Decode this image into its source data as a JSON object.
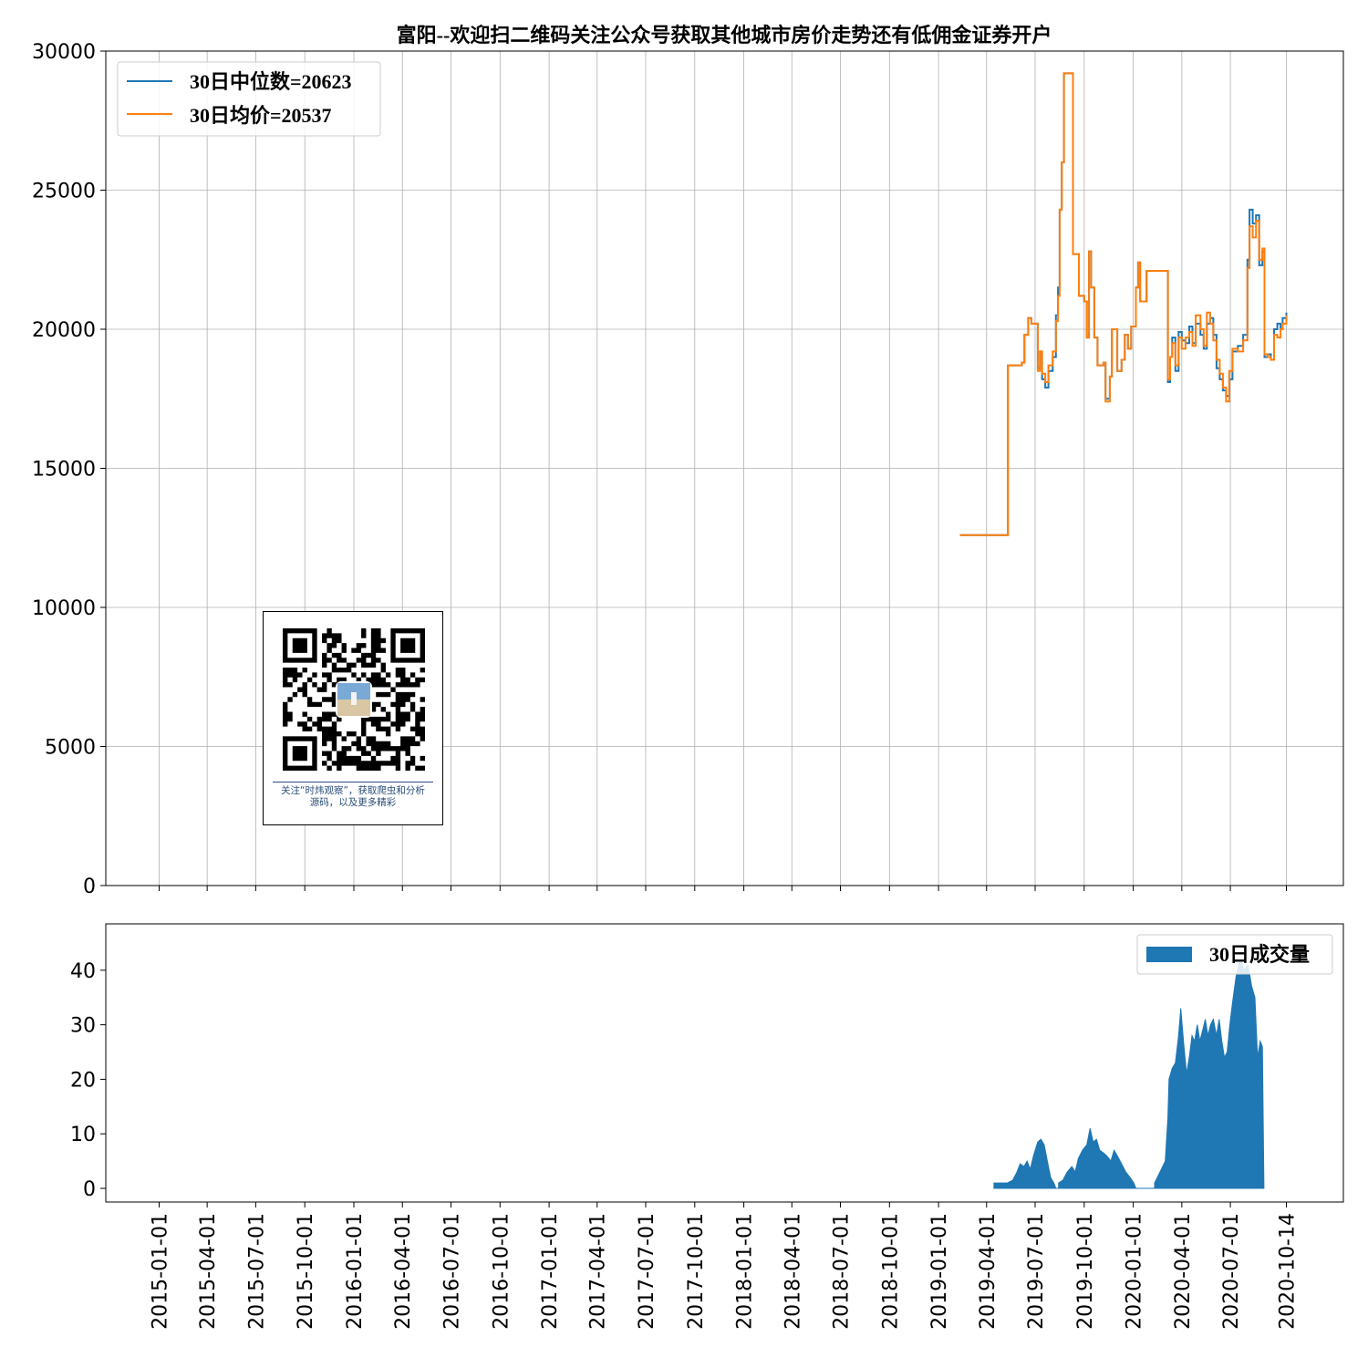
{
  "chart_data": [
    {
      "type": "line",
      "title": "富阳--欢迎扫二维码关注公众号获取其他城市房价走势还有低佣金证券开户",
      "ylim": [
        0,
        30000
      ],
      "yticks": [
        0,
        5000,
        10000,
        15000,
        20000,
        25000,
        30000
      ],
      "grid": true,
      "legend_position": "top-left",
      "series": [
        {
          "name": "30日中位数=20623",
          "color": "#1f77b4",
          "step": true,
          "points": [
            [
              "2019-02-10",
              12600
            ],
            [
              "2019-05-10",
              12600
            ],
            [
              "2019-05-11",
              18700
            ],
            [
              "2019-05-26",
              18700
            ],
            [
              "2019-06-06",
              18800
            ],
            [
              "2019-06-11",
              19800
            ],
            [
              "2019-06-18",
              20400
            ],
            [
              "2019-06-24",
              20200
            ],
            [
              "2019-07-06",
              18600
            ],
            [
              "2019-07-10",
              19200
            ],
            [
              "2019-07-14",
              18200
            ],
            [
              "2019-07-20",
              17900
            ],
            [
              "2019-07-26",
              18500
            ],
            [
              "2019-08-03",
              19000
            ],
            [
              "2019-08-09",
              20500
            ],
            [
              "2019-08-13",
              21500
            ],
            [
              "2019-08-16",
              24300
            ],
            [
              "2019-08-20",
              26000
            ],
            [
              "2019-08-24",
              29200
            ],
            [
              "2019-09-10",
              22700
            ],
            [
              "2019-09-21",
              21200
            ],
            [
              "2019-10-01",
              21000
            ],
            [
              "2019-10-06",
              19700
            ],
            [
              "2019-10-10",
              22800
            ],
            [
              "2019-10-14",
              21500
            ],
            [
              "2019-10-20",
              19700
            ],
            [
              "2019-10-26",
              18700
            ],
            [
              "2019-11-06",
              18800
            ],
            [
              "2019-11-10",
              17500
            ],
            [
              "2019-11-18",
              18300
            ],
            [
              "2019-11-22",
              20000
            ],
            [
              "2019-12-02",
              18500
            ],
            [
              "2019-12-10",
              18900
            ],
            [
              "2019-12-16",
              19800
            ],
            [
              "2019-12-22",
              19300
            ],
            [
              "2019-12-28",
              20100
            ],
            [
              "2020-01-06",
              21500
            ],
            [
              "2020-01-10",
              22400
            ],
            [
              "2020-01-14",
              21000
            ],
            [
              "2020-01-26",
              22100
            ],
            [
              "2020-03-06",
              18100
            ],
            [
              "2020-03-10",
              19000
            ],
            [
              "2020-03-14",
              19700
            ],
            [
              "2020-03-20",
              18500
            ],
            [
              "2020-03-26",
              19900
            ],
            [
              "2020-04-01",
              19600
            ],
            [
              "2020-04-08",
              19500
            ],
            [
              "2020-04-15",
              20100
            ],
            [
              "2020-04-21",
              19500
            ],
            [
              "2020-04-27",
              20200
            ],
            [
              "2020-05-06",
              19800
            ],
            [
              "2020-05-12",
              19300
            ],
            [
              "2020-05-18",
              20200
            ],
            [
              "2020-05-24",
              20400
            ],
            [
              "2020-05-30",
              19800
            ],
            [
              "2020-06-05",
              18600
            ],
            [
              "2020-06-11",
              18200
            ],
            [
              "2020-06-17",
              17800
            ],
            [
              "2020-06-23",
              17600
            ],
            [
              "2020-06-29",
              18200
            ],
            [
              "2020-07-05",
              19200
            ],
            [
              "2020-07-15",
              19400
            ],
            [
              "2020-07-25",
              19800
            ],
            [
              "2020-08-02",
              22500
            ],
            [
              "2020-08-06",
              24300
            ],
            [
              "2020-08-12",
              23800
            ],
            [
              "2020-08-18",
              24100
            ],
            [
              "2020-08-24",
              22300
            ],
            [
              "2020-08-30",
              22800
            ],
            [
              "2020-09-03",
              19000
            ],
            [
              "2020-09-09",
              19100
            ],
            [
              "2020-09-15",
              18900
            ],
            [
              "2020-09-21",
              20000
            ],
            [
              "2020-09-27",
              20200
            ],
            [
              "2020-10-03",
              20000
            ],
            [
              "2020-10-07",
              20400
            ],
            [
              "2020-10-14",
              20600
            ]
          ]
        },
        {
          "name": "30日均价=20537",
          "color": "#ff7f0e",
          "step": true,
          "points": [
            [
              "2019-02-10",
              12600
            ],
            [
              "2019-05-10",
              12600
            ],
            [
              "2019-05-11",
              18700
            ],
            [
              "2019-05-26",
              18700
            ],
            [
              "2019-06-06",
              18800
            ],
            [
              "2019-06-11",
              19800
            ],
            [
              "2019-06-18",
              20400
            ],
            [
              "2019-06-24",
              20200
            ],
            [
              "2019-07-06",
              18500
            ],
            [
              "2019-07-10",
              19200
            ],
            [
              "2019-07-14",
              18400
            ],
            [
              "2019-07-20",
              18100
            ],
            [
              "2019-07-26",
              18700
            ],
            [
              "2019-08-03",
              19200
            ],
            [
              "2019-08-09",
              20300
            ],
            [
              "2019-08-13",
              21200
            ],
            [
              "2019-08-16",
              24300
            ],
            [
              "2019-08-20",
              26000
            ],
            [
              "2019-08-24",
              29200
            ],
            [
              "2019-09-10",
              22700
            ],
            [
              "2019-09-21",
              21200
            ],
            [
              "2019-10-01",
              21000
            ],
            [
              "2019-10-06",
              19700
            ],
            [
              "2019-10-10",
              22800
            ],
            [
              "2019-10-14",
              21500
            ],
            [
              "2019-10-20",
              19700
            ],
            [
              "2019-10-26",
              18700
            ],
            [
              "2019-11-06",
              18800
            ],
            [
              "2019-11-10",
              17400
            ],
            [
              "2019-11-18",
              18300
            ],
            [
              "2019-11-22",
              20000
            ],
            [
              "2019-12-02",
              18500
            ],
            [
              "2019-12-10",
              18900
            ],
            [
              "2019-12-16",
              19800
            ],
            [
              "2019-12-22",
              19300
            ],
            [
              "2019-12-28",
              20100
            ],
            [
              "2020-01-06",
              21500
            ],
            [
              "2020-01-10",
              22400
            ],
            [
              "2020-01-14",
              21000
            ],
            [
              "2020-01-26",
              22100
            ],
            [
              "2020-03-06",
              18200
            ],
            [
              "2020-03-10",
              19000
            ],
            [
              "2020-03-14",
              19500
            ],
            [
              "2020-03-20",
              18700
            ],
            [
              "2020-03-26",
              19700
            ],
            [
              "2020-04-01",
              19300
            ],
            [
              "2020-04-08",
              19700
            ],
            [
              "2020-04-15",
              19900
            ],
            [
              "2020-04-21",
              19400
            ],
            [
              "2020-04-27",
              20500
            ],
            [
              "2020-05-06",
              20000
            ],
            [
              "2020-05-12",
              19400
            ],
            [
              "2020-05-18",
              20600
            ],
            [
              "2020-05-24",
              20200
            ],
            [
              "2020-05-30",
              19600
            ],
            [
              "2020-06-05",
              18900
            ],
            [
              "2020-06-11",
              18400
            ],
            [
              "2020-06-17",
              17900
            ],
            [
              "2020-06-23",
              17400
            ],
            [
              "2020-06-29",
              18500
            ],
            [
              "2020-07-05",
              19300
            ],
            [
              "2020-07-15",
              19200
            ],
            [
              "2020-07-25",
              19600
            ],
            [
              "2020-08-02",
              22200
            ],
            [
              "2020-08-06",
              23700
            ],
            [
              "2020-08-12",
              23300
            ],
            [
              "2020-08-18",
              23900
            ],
            [
              "2020-08-24",
              22500
            ],
            [
              "2020-08-30",
              22900
            ],
            [
              "2020-09-03",
              19100
            ],
            [
              "2020-09-09",
              19000
            ],
            [
              "2020-09-15",
              18900
            ],
            [
              "2020-09-21",
              19800
            ],
            [
              "2020-09-27",
              19700
            ],
            [
              "2020-10-03",
              20000
            ],
            [
              "2020-10-07",
              20200
            ],
            [
              "2020-10-14",
              20500
            ]
          ]
        }
      ]
    },
    {
      "type": "area",
      "ylim": [
        -2.5,
        48.5
      ],
      "yticks": [
        0,
        10,
        20,
        30,
        40
      ],
      "legend_position": "top-right",
      "xticks": [
        "2015-01-01",
        "2015-04-01",
        "2015-07-01",
        "2015-10-01",
        "2016-01-01",
        "2016-04-01",
        "2016-07-01",
        "2016-10-01",
        "2017-01-01",
        "2017-04-01",
        "2017-07-01",
        "2017-10-01",
        "2018-01-01",
        "2018-04-01",
        "2018-07-01",
        "2018-10-01",
        "2019-01-01",
        "2019-04-01",
        "2019-07-01",
        "2019-10-01",
        "2020-01-01",
        "2020-04-01",
        "2020-07-01",
        "2020-10-14"
      ],
      "series": [
        {
          "name": "30日成交量",
          "color": "#1f77b4",
          "points": [
            [
              "2019-04-15",
              0
            ],
            [
              "2019-04-15",
              1
            ],
            [
              "2019-05-10",
              1
            ],
            [
              "2019-05-20",
              1.5
            ],
            [
              "2019-05-28",
              3
            ],
            [
              "2019-06-03",
              4.5
            ],
            [
              "2019-06-10",
              4
            ],
            [
              "2019-06-16",
              5
            ],
            [
              "2019-06-22",
              3.5
            ],
            [
              "2019-06-28",
              6
            ],
            [
              "2019-07-06",
              8.5
            ],
            [
              "2019-07-12",
              9
            ],
            [
              "2019-07-18",
              8
            ],
            [
              "2019-07-24",
              5
            ],
            [
              "2019-07-30",
              2
            ],
            [
              "2019-08-05",
              1
            ],
            [
              "2019-08-09",
              0
            ],
            [
              "2019-08-14",
              0
            ],
            [
              "2019-08-14",
              1
            ],
            [
              "2019-08-22",
              1.5
            ],
            [
              "2019-08-30",
              3
            ],
            [
              "2019-09-08",
              4
            ],
            [
              "2019-09-14",
              3
            ],
            [
              "2019-09-20",
              5.5
            ],
            [
              "2019-09-28",
              7
            ],
            [
              "2019-10-06",
              8
            ],
            [
              "2019-10-12",
              11
            ],
            [
              "2019-10-18",
              8.5
            ],
            [
              "2019-10-24",
              9
            ],
            [
              "2019-10-30",
              7
            ],
            [
              "2019-11-06",
              6.5
            ],
            [
              "2019-11-12",
              6
            ],
            [
              "2019-11-20",
              5
            ],
            [
              "2019-11-26",
              7
            ],
            [
              "2019-12-02",
              6
            ],
            [
              "2019-12-10",
              4.5
            ],
            [
              "2019-12-18",
              3
            ],
            [
              "2019-12-26",
              2
            ],
            [
              "2020-01-02",
              1
            ],
            [
              "2020-01-06",
              0
            ],
            [
              "2020-02-10",
              0
            ],
            [
              "2020-02-10",
              1
            ],
            [
              "2020-02-20",
              3
            ],
            [
              "2020-03-01",
              5
            ],
            [
              "2020-03-06",
              13
            ],
            [
              "2020-03-08",
              20
            ],
            [
              "2020-03-14",
              22
            ],
            [
              "2020-03-20",
              23
            ],
            [
              "2020-03-26",
              28
            ],
            [
              "2020-03-30",
              33
            ],
            [
              "2020-04-05",
              26
            ],
            [
              "2020-04-10",
              21
            ],
            [
              "2020-04-15",
              24
            ],
            [
              "2020-04-20",
              28
            ],
            [
              "2020-04-25",
              27
            ],
            [
              "2020-04-30",
              30
            ],
            [
              "2020-05-05",
              27
            ],
            [
              "2020-05-10",
              29
            ],
            [
              "2020-05-15",
              31
            ],
            [
              "2020-05-20",
              28
            ],
            [
              "2020-05-25",
              30
            ],
            [
              "2020-05-30",
              31
            ],
            [
              "2020-06-05",
              28
            ],
            [
              "2020-06-10",
              31
            ],
            [
              "2020-06-15",
              27
            ],
            [
              "2020-06-20",
              24
            ],
            [
              "2020-06-25",
              25
            ],
            [
              "2020-06-30",
              30
            ],
            [
              "2020-07-05",
              34
            ],
            [
              "2020-07-12",
              39
            ],
            [
              "2020-07-20",
              42
            ],
            [
              "2020-07-27",
              40
            ],
            [
              "2020-08-03",
              41
            ],
            [
              "2020-08-10",
              37
            ],
            [
              "2020-08-16",
              35
            ],
            [
              "2020-08-21",
              24
            ],
            [
              "2020-08-26",
              27
            ],
            [
              "2020-08-30",
              26
            ],
            [
              "2020-09-02",
              0
            ]
          ]
        }
      ]
    }
  ],
  "qr_panel": {
    "caption_line1": "关注“时炜观察”，获取爬虫和分析",
    "caption_line2": "源码，以及更多精彩"
  }
}
